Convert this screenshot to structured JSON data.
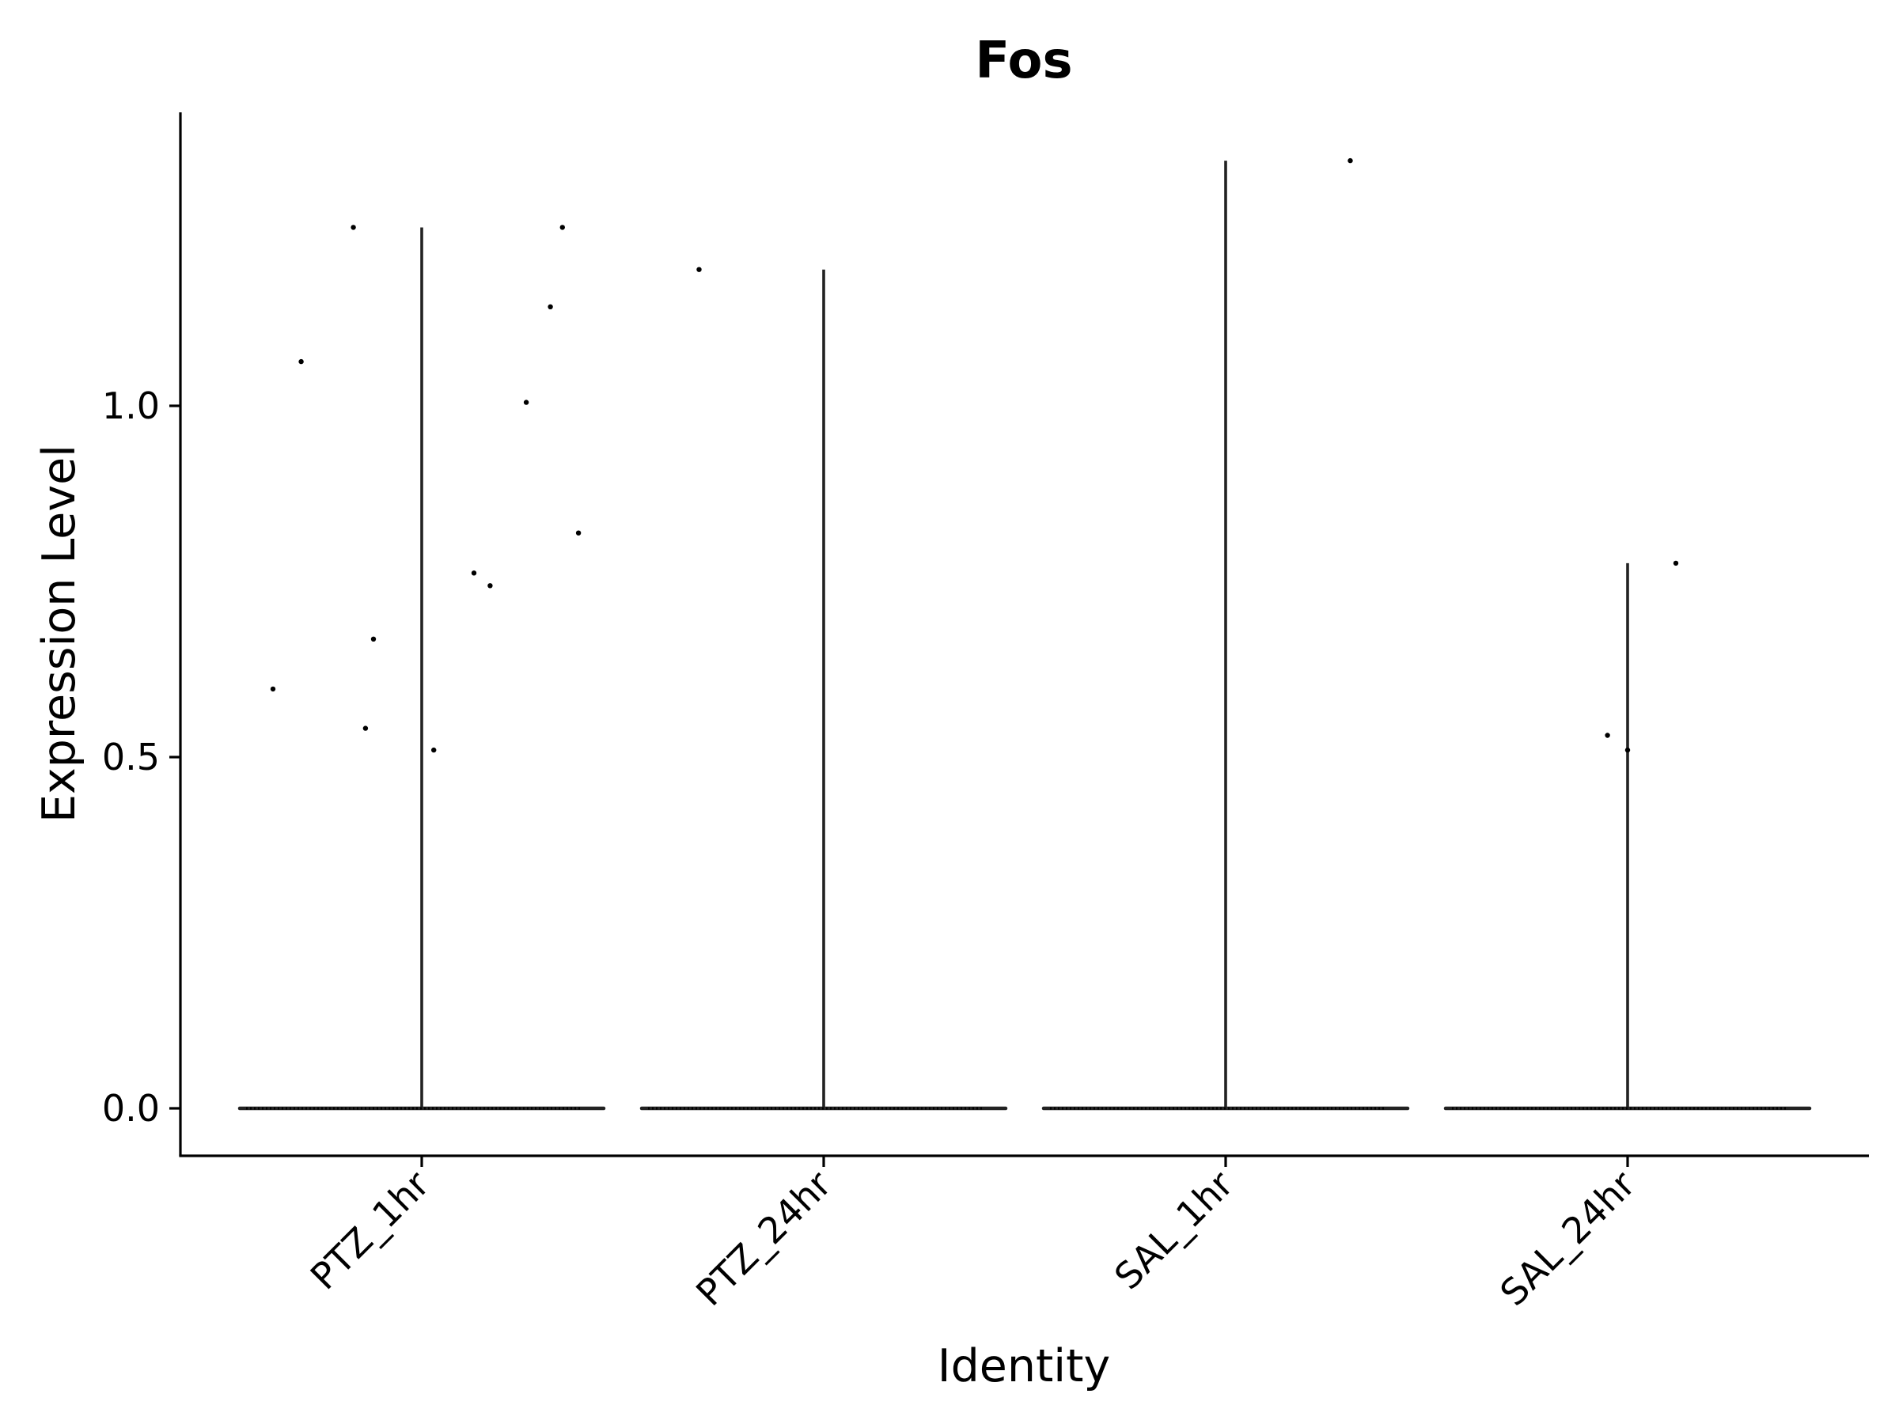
{
  "chart_data": {
    "type": "violin",
    "title": "Fos",
    "xlabel": "Identity",
    "ylabel": "Expression Level",
    "categories": [
      "PTZ_1hr",
      "PTZ_24hr",
      "SAL_1hr",
      "SAL_24hr"
    ],
    "ylim": [
      -0.066,
      1.42
    ],
    "yticks": [
      0.0,
      0.5,
      1.0
    ],
    "ytick_labels": [
      "0.0",
      "0.5",
      "1.0"
    ],
    "grid": false,
    "legend": "none",
    "colors": {
      "violin": "#222222",
      "points": "#000000",
      "axis": "#000000"
    },
    "violins": [
      {
        "category": "PTZ_1hr",
        "max": 1.254,
        "bulk": 0.0
      },
      {
        "category": "PTZ_24hr",
        "max": 1.194,
        "bulk": 0.0
      },
      {
        "category": "SAL_1hr",
        "max": 1.349,
        "bulk": 0.0
      },
      {
        "category": "SAL_24hr",
        "max": 0.776,
        "bulk": 0.0
      }
    ],
    "points": [
      {
        "category": "PTZ_1hr",
        "jitter": -0.37,
        "y": 0.597
      },
      {
        "category": "PTZ_1hr",
        "jitter": -0.3,
        "y": 1.063
      },
      {
        "category": "PTZ_1hr",
        "jitter": -0.17,
        "y": 1.254
      },
      {
        "category": "PTZ_1hr",
        "jitter": -0.14,
        "y": 0.541
      },
      {
        "category": "PTZ_1hr",
        "jitter": -0.12,
        "y": 0.668
      },
      {
        "category": "PTZ_1hr",
        "jitter": 0.03,
        "y": 0.51
      },
      {
        "category": "PTZ_1hr",
        "jitter": 0.13,
        "y": 0.762
      },
      {
        "category": "PTZ_1hr",
        "jitter": 0.17,
        "y": 0.744
      },
      {
        "category": "PTZ_1hr",
        "jitter": 0.26,
        "y": 1.005
      },
      {
        "category": "PTZ_1hr",
        "jitter": 0.32,
        "y": 1.141
      },
      {
        "category": "PTZ_1hr",
        "jitter": 0.35,
        "y": 1.254
      },
      {
        "category": "PTZ_1hr",
        "jitter": 0.39,
        "y": 0.819
      },
      {
        "category": "PTZ_24hr",
        "jitter": -0.31,
        "y": 1.194
      },
      {
        "category": "SAL_1hr",
        "jitter": 0.31,
        "y": 1.349
      },
      {
        "category": "SAL_24hr",
        "jitter": -0.05,
        "y": 0.531
      },
      {
        "category": "SAL_24hr",
        "jitter": 0.0,
        "y": 0.51
      },
      {
        "category": "SAL_24hr",
        "jitter": 0.12,
        "y": 0.776
      }
    ]
  }
}
